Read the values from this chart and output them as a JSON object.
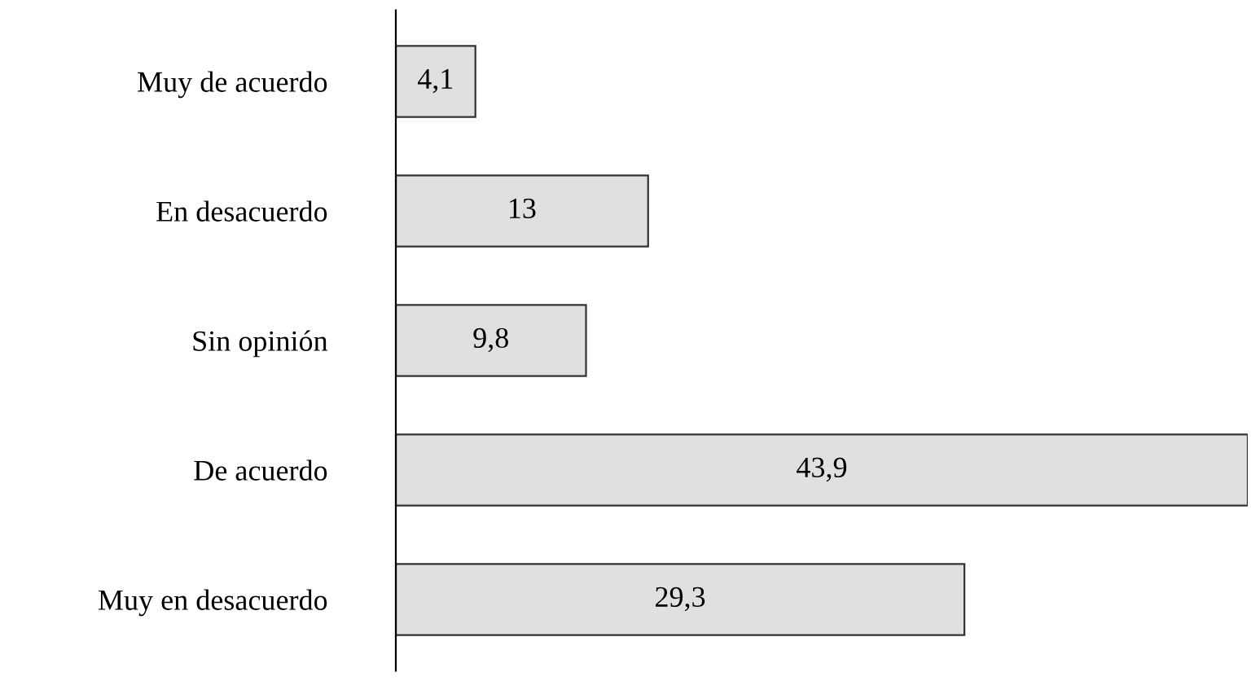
{
  "chart_data": {
    "type": "bar",
    "orientation": "horizontal",
    "categories": [
      "Muy de acuerdo",
      "En desacuerdo",
      "Sin opinión",
      "De acuerdo",
      "Muy en desacuerdo"
    ],
    "values": [
      4.1,
      13,
      9.8,
      43.9,
      29.3
    ],
    "value_labels": [
      "4,1",
      "13",
      "9,8",
      "43,9",
      "29,3"
    ],
    "color": "#e0e0e0",
    "grid": false,
    "legend": false
  }
}
